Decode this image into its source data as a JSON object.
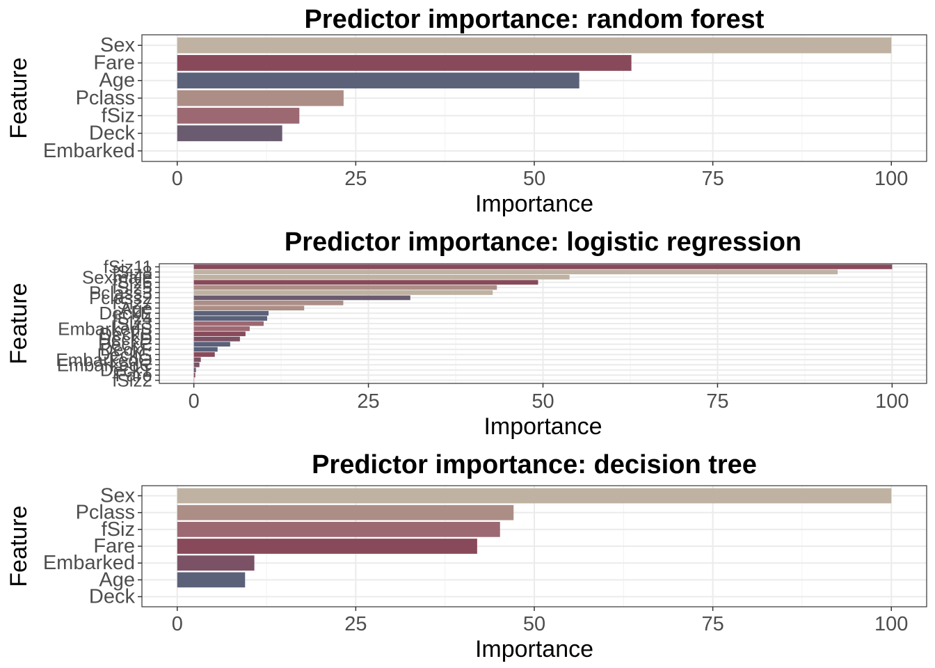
{
  "colors": {
    "Sex": "#bfb2a2",
    "Fare": "#884a5a",
    "Age": "#5a6179",
    "Pclass": "#ac8e86",
    "fSiz": "#9c6872",
    "Deck": "#6b5b70",
    "Embarked": "#7b5265"
  },
  "chart_data": [
    {
      "type": "bar",
      "orientation": "horizontal",
      "title": "Predictor importance: random forest",
      "xlabel": "Importance",
      "ylabel": "Feature",
      "xlim": [
        0,
        100
      ],
      "xticks": [
        "0",
        "25",
        "50",
        "75",
        "100"
      ],
      "categories": [
        "Sex",
        "Fare",
        "Age",
        "Pclass",
        "fSiz",
        "Deck",
        "Embarked"
      ],
      "values": [
        100,
        63.6,
        56.3,
        23.3,
        17.1,
        14.7,
        0
      ],
      "bar_colors": [
        "#bfb2a2",
        "#884a5a",
        "#5a6179",
        "#ac8e86",
        "#9c6872",
        "#6b5b70",
        "#7b5265"
      ],
      "grid": true
    },
    {
      "type": "bar",
      "orientation": "horizontal",
      "title": "Predictor importance: logistic regression",
      "xlabel": "Importance",
      "ylabel": "Feature",
      "xlim": [
        0,
        100
      ],
      "xticks": [
        "0",
        "25",
        "50",
        "75",
        "100"
      ],
      "categories": [
        "fSiz11",
        "fSiz8",
        "Sexmale",
        "fSiz6",
        "fSiz5",
        "Pclass3",
        "Pclass2",
        "fSiz7",
        "Age",
        "DeckE",
        "fSiz4",
        "fSiz3",
        "EmbarkedS",
        "DeckB",
        "DeckD",
        "DeckC",
        "DeckF",
        "DeckG",
        "EmbarkedQ",
        "EmbarkedC",
        "DeckT",
        "Fare",
        "fSiz2"
      ],
      "values": [
        100,
        92.2,
        53.8,
        49.3,
        43.4,
        42.8,
        31,
        21.4,
        15.8,
        10.7,
        10.5,
        10,
        8,
        7.4,
        6.6,
        5.2,
        3.4,
        3,
        1,
        0.8,
        0.3,
        0.2,
        0.05
      ],
      "bar_colors": [
        "#884a5a",
        "#bfb2a2",
        "#bfb2a2",
        "#884a5a",
        "#ac8e86",
        "#bfb2a2",
        "#6b5b70",
        "#ac8e86",
        "#ac8e86",
        "#5a6179",
        "#5a6179",
        "#9c6872",
        "#9c6872",
        "#884a5a",
        "#7b5265",
        "#5a6179",
        "#5a6179",
        "#884a5a",
        "#7b5265",
        "#7b5265",
        "#6b5b70",
        "#884a5a",
        "#9c6872"
      ],
      "grid": true
    },
    {
      "type": "bar",
      "orientation": "horizontal",
      "title": "Predictor importance: decision tree",
      "xlabel": "Importance",
      "ylabel": "Feature",
      "xlim": [
        0,
        100
      ],
      "xticks": [
        "0",
        "25",
        "50",
        "75",
        "100"
      ],
      "categories": [
        "Sex",
        "Pclass",
        "fSiz",
        "Fare",
        "Embarked",
        "Age",
        "Deck"
      ],
      "values": [
        100,
        47.1,
        45.2,
        42,
        10.8,
        9.5,
        0
      ],
      "bar_colors": [
        "#bfb2a2",
        "#ac8e86",
        "#9c6872",
        "#884a5a",
        "#7b5265",
        "#5a6179",
        "#6b5b70"
      ],
      "grid": true
    }
  ]
}
